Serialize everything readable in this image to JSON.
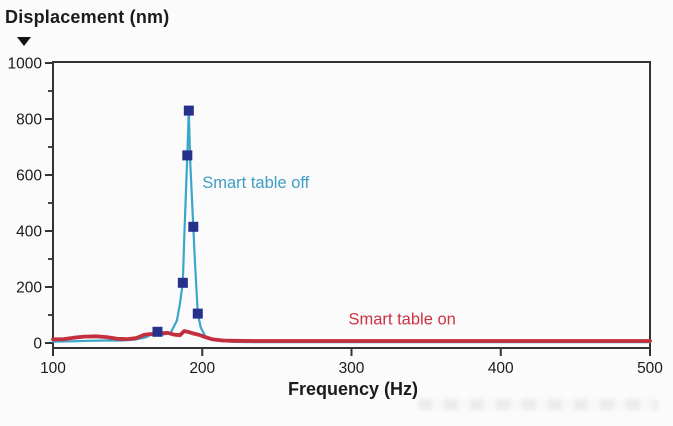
{
  "chart_data": {
    "type": "line",
    "title": "Displacement (nm)",
    "xlabel": "Frequency (Hz)",
    "ylabel": "Displacement (nm)",
    "xlim": [
      100,
      500
    ],
    "ylim": [
      0,
      1000
    ],
    "x_ticks": [
      100,
      200,
      300,
      400,
      500
    ],
    "y_ticks_major": [
      0,
      200,
      400,
      600,
      800,
      1000
    ],
    "y_ticks_minor": [
      100,
      300,
      500,
      700,
      900
    ],
    "grid": false,
    "legend_position": "inline-annotations",
    "series": [
      {
        "name": "Smart table off",
        "color": "#3AA6C9",
        "line_width": 2.2,
        "marker": "square",
        "marker_color": "#26318C",
        "points": [
          [
            100,
            5
          ],
          [
            112,
            6
          ],
          [
            124,
            8
          ],
          [
            136,
            9
          ],
          [
            146,
            9
          ],
          [
            155,
            12
          ],
          [
            162,
            20
          ],
          [
            170,
            40
          ],
          [
            174,
            30
          ],
          [
            179,
            38
          ],
          [
            183,
            80
          ],
          [
            185,
            140
          ],
          [
            187,
            215
          ],
          [
            188,
            380
          ],
          [
            190,
            670
          ],
          [
            191,
            830
          ],
          [
            192,
            640
          ],
          [
            194,
            415
          ],
          [
            195,
            300
          ],
          [
            197,
            105
          ],
          [
            199,
            55
          ],
          [
            202,
            25
          ],
          [
            206,
            12
          ],
          [
            212,
            7
          ],
          [
            222,
            4
          ],
          [
            240,
            3
          ],
          [
            280,
            3
          ],
          [
            340,
            3
          ],
          [
            420,
            3
          ],
          [
            500,
            3
          ]
        ],
        "marker_points": [
          [
            170,
            40
          ],
          [
            187,
            215
          ],
          [
            190,
            670
          ],
          [
            191,
            830
          ],
          [
            194,
            415
          ],
          [
            197,
            105
          ]
        ]
      },
      {
        "name": "Smart table on",
        "color": "#C42F3D",
        "line_width": 3.8,
        "marker": "none",
        "points": [
          [
            100,
            13
          ],
          [
            107,
            14
          ],
          [
            114,
            19
          ],
          [
            121,
            23
          ],
          [
            129,
            24
          ],
          [
            136,
            21
          ],
          [
            143,
            15
          ],
          [
            150,
            14
          ],
          [
            156,
            18
          ],
          [
            161,
            29
          ],
          [
            165,
            32
          ],
          [
            169,
            30
          ],
          [
            173,
            35
          ],
          [
            177,
            36
          ],
          [
            181,
            30
          ],
          [
            185,
            28
          ],
          [
            188,
            43
          ],
          [
            191,
            39
          ],
          [
            194,
            34
          ],
          [
            198,
            29
          ],
          [
            202,
            21
          ],
          [
            207,
            13
          ],
          [
            214,
            9
          ],
          [
            222,
            8
          ],
          [
            235,
            7
          ],
          [
            260,
            7
          ],
          [
            300,
            7
          ],
          [
            360,
            7
          ],
          [
            420,
            7
          ],
          [
            500,
            7
          ]
        ]
      }
    ],
    "annotations": [
      {
        "text": "Smart table off",
        "x_hz": 200,
        "y_nm": 575,
        "color": "#3E9EC3"
      },
      {
        "text": "Smart table on",
        "x_hz": 298,
        "y_nm": 88,
        "color": "#CB3243"
      }
    ]
  },
  "colors": {
    "background": "#fbfbfb",
    "axis": "#333333",
    "text": "#1b1b1b"
  }
}
